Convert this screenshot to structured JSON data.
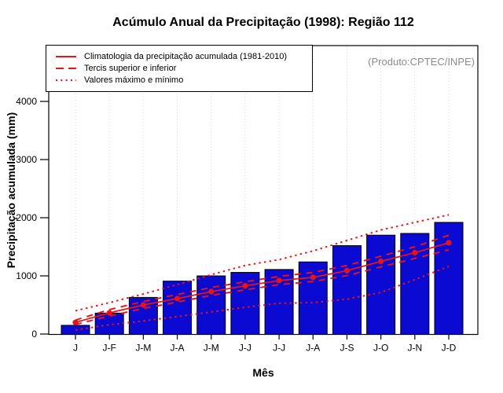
{
  "chart_data": {
    "type": "bar",
    "title": "Acúmulo Anual da Precipitação (1998): Região 112",
    "xlabel": "Mês",
    "ylabel": "Precipitação acumulada (mm)",
    "note": "(Produto:CPTEC/INPE)",
    "categories": [
      "J",
      "J-F",
      "J-M",
      "J-A",
      "J-M",
      "J-J",
      "J-J",
      "J-A",
      "J-S",
      "J-O",
      "J-N",
      "J-D"
    ],
    "bar_values": [
      150,
      360,
      630,
      910,
      1000,
      1060,
      1110,
      1240,
      1520,
      1700,
      1730,
      1920
    ],
    "y_ticks": [
      0,
      1000,
      2000,
      3000,
      4000
    ],
    "ylim": [
      0,
      4950
    ],
    "grid": "vertical dotted line at each month",
    "legend_position": "top-left",
    "series": [
      {
        "name": "Climatologia da precipitação acumulada (1981-2010)",
        "style": "solid",
        "marker": "circle",
        "values": [
          200,
          365,
          500,
          610,
          730,
          830,
          920,
          975,
          1090,
          1250,
          1400,
          1570
        ]
      },
      {
        "name": "Tercil superior",
        "style": "dashed",
        "marker": "none",
        "values": [
          240,
          420,
          560,
          680,
          800,
          900,
          990,
          1060,
          1180,
          1340,
          1500,
          1700
        ]
      },
      {
        "name": "Tercil inferior",
        "style": "dashed",
        "marker": "none",
        "values": [
          165,
          310,
          440,
          550,
          665,
          760,
          850,
          905,
          1005,
          1155,
          1300,
          1450
        ]
      },
      {
        "name": "Valor máximo",
        "style": "dotted",
        "marker": "none",
        "values": [
          400,
          540,
          690,
          850,
          1020,
          1180,
          1280,
          1430,
          1610,
          1790,
          1920,
          2050
        ]
      },
      {
        "name": "Valor mínimo",
        "style": "dotted",
        "marker": "none",
        "values": [
          70,
          160,
          225,
          300,
          380,
          460,
          530,
          540,
          600,
          715,
          935,
          1165
        ]
      }
    ],
    "legend": [
      {
        "label": "Climatologia da precipitação acumulada (1981-2010)",
        "style": "solid"
      },
      {
        "label": "Tercis superior e inferior",
        "style": "dashed"
      },
      {
        "label": "Valores máximo e mínimo",
        "style": "dotted"
      }
    ],
    "colors": {
      "bar": "#0a0ad2",
      "red": "#ee1111",
      "grid": "#d9d9d9",
      "note_gray": "#8c8c8c",
      "frame": "#000000"
    }
  }
}
